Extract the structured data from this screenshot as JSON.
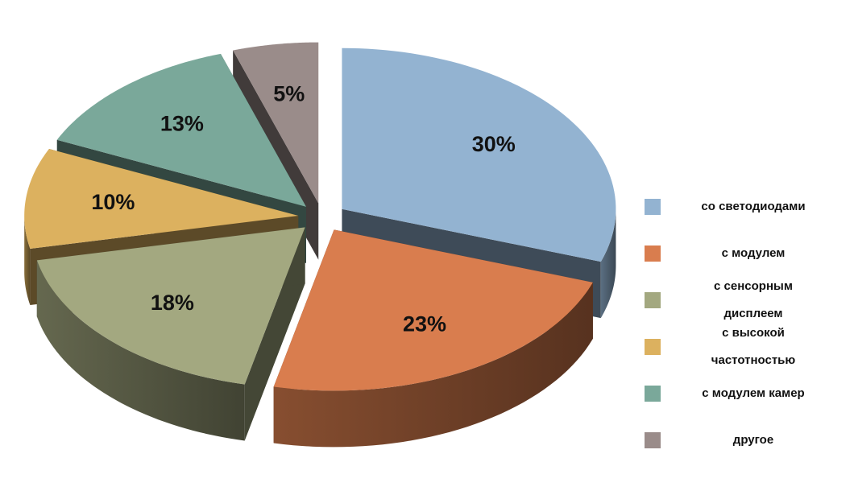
{
  "chart_data": {
    "type": "pie",
    "categories": [
      "со светодиодами",
      "с модулем",
      "с сенсорным дисплеем",
      "с высокой частотностью",
      "с модулем камер",
      "другое"
    ],
    "values": [
      30,
      23,
      18,
      10,
      13,
      5
    ],
    "value_labels": [
      "30%",
      "23%",
      "18%",
      "10%",
      "13%",
      "5%"
    ],
    "colors": [
      "#93b3d1",
      "#d97d4e",
      "#a3a880",
      "#dcb15f",
      "#7aa89a",
      "#9a8c8a"
    ],
    "legend": "right"
  }
}
